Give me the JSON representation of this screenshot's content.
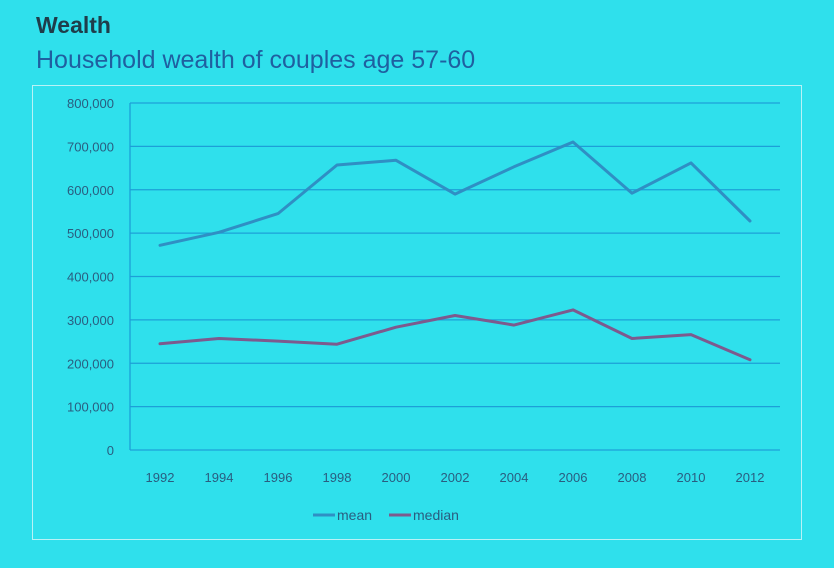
{
  "slide": {
    "title": "Wealth"
  },
  "chart_data": {
    "type": "line",
    "title": "Household wealth of couples age 57-60",
    "xlabel": "",
    "ylabel": "",
    "categories": [
      "1992",
      "1994",
      "1996",
      "1998",
      "2000",
      "2002",
      "2004",
      "2006",
      "2008",
      "2010",
      "2012"
    ],
    "ylim": [
      0,
      800000
    ],
    "yticks": [
      0,
      100000,
      200000,
      300000,
      400000,
      500000,
      600000,
      700000,
      800000
    ],
    "ytick_labels": [
      "0",
      "100,000",
      "200,000",
      "300,000",
      "400,000",
      "500,000",
      "600,000",
      "700,000",
      "800,000"
    ],
    "grid": true,
    "legend_position": "bottom",
    "series": [
      {
        "name": "mean",
        "color": "#2f8fc4",
        "values": [
          472000,
          502000,
          545000,
          657000,
          668000,
          590000,
          653000,
          710000,
          592000,
          662000,
          528000
        ]
      },
      {
        "name": "median",
        "color": "#7d5a8e",
        "values": [
          245000,
          257000,
          251000,
          244000,
          283000,
          310000,
          288000,
          323000,
          257000,
          266000,
          208000
        ]
      }
    ]
  }
}
